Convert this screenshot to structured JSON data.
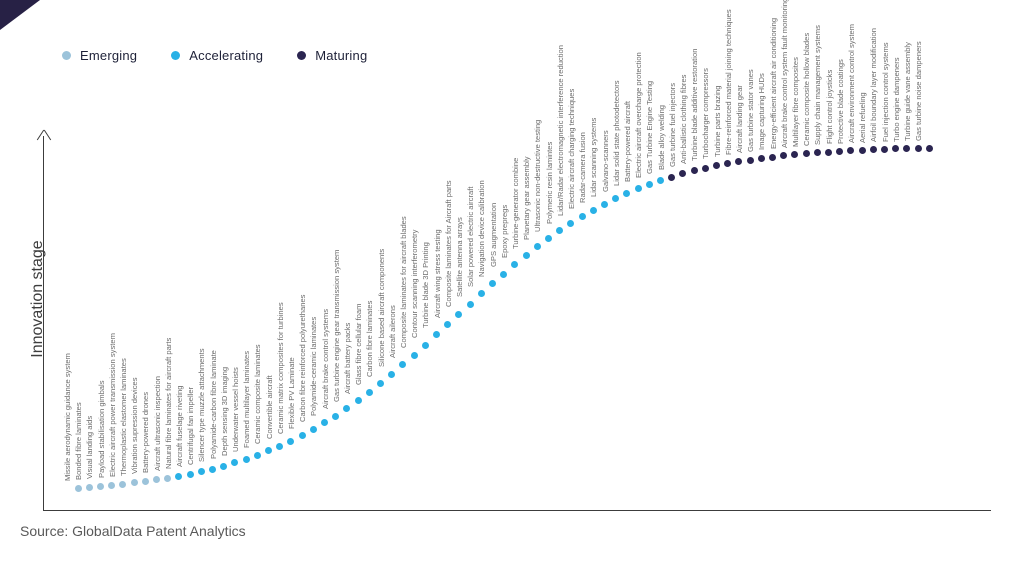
{
  "legend": {
    "items": [
      {
        "label": "Emerging",
        "color": "#9cc3da"
      },
      {
        "label": "Accelerating",
        "color": "#29b1e6"
      },
      {
        "label": "Maturing",
        "color": "#2b2551"
      }
    ]
  },
  "source": "Source: GlobalData Patent Analytics",
  "chart_data": {
    "type": "scatter",
    "title": "",
    "xlabel": "",
    "ylabel": "Innovation stage",
    "legend_position": "top-left",
    "grid": false,
    "axes_note": "no tick labels; single S-curve of ranked technologies, y = innovation stage ascending",
    "stage_colors": {
      "Emerging": "#9cc3da",
      "Accelerating": "#29b1e6",
      "Maturing": "#2b2551"
    },
    "points": [
      {
        "label": "Missile aerodynamic guidance system",
        "stage": "Emerging"
      },
      {
        "label": "Bonded fibre laminates",
        "stage": "Emerging"
      },
      {
        "label": "Visual landing aids",
        "stage": "Emerging"
      },
      {
        "label": "Payload stabilisation gimbals",
        "stage": "Emerging"
      },
      {
        "label": "Electric aircraft power transmission system",
        "stage": "Emerging"
      },
      {
        "label": "Thermoplastic elastomer laminates",
        "stage": "Emerging"
      },
      {
        "label": "Vibration supression devices",
        "stage": "Emerging"
      },
      {
        "label": "Battery-powered drones",
        "stage": "Emerging"
      },
      {
        "label": "Aircraft ultrasonic inspection",
        "stage": "Emerging"
      },
      {
        "label": "Natural fibre laminates for aircraft parts",
        "stage": "Accelerating"
      },
      {
        "label": "Aircraft fuselage riveting",
        "stage": "Accelerating"
      },
      {
        "label": "Centrifugal fan impeller",
        "stage": "Accelerating"
      },
      {
        "label": "Silencer type muzzle attachments",
        "stage": "Accelerating"
      },
      {
        "label": "Polyamide-carbon fibre laminate",
        "stage": "Accelerating"
      },
      {
        "label": "Depth sensing 3D imaging",
        "stage": "Accelerating"
      },
      {
        "label": "Underwater vessel hoists",
        "stage": "Accelerating"
      },
      {
        "label": "Foamed multilayer laminates",
        "stage": "Accelerating"
      },
      {
        "label": "Ceramic composite laminates",
        "stage": "Accelerating"
      },
      {
        "label": "Convertible aircraft",
        "stage": "Accelerating"
      },
      {
        "label": "Ceramic matrix composites for turbines",
        "stage": "Accelerating"
      },
      {
        "label": "Flexible PV Laminate",
        "stage": "Accelerating"
      },
      {
        "label": "Carbon fibre reinforced polyurethanes",
        "stage": "Accelerating"
      },
      {
        "label": "Polyamide-ceramic laminates",
        "stage": "Accelerating"
      },
      {
        "label": "Aircraft brake control systems",
        "stage": "Accelerating"
      },
      {
        "label": "Gas turbine engine gear transmission system",
        "stage": "Accelerating"
      },
      {
        "label": "Aircraft battery packs",
        "stage": "Accelerating"
      },
      {
        "label": "Glass fibre cellular foam",
        "stage": "Accelerating"
      },
      {
        "label": "Carbon fibre laminates",
        "stage": "Accelerating"
      },
      {
        "label": "Silicone based aircraft components",
        "stage": "Accelerating"
      },
      {
        "label": "Aircraft ailerons",
        "stage": "Accelerating"
      },
      {
        "label": "Composite laminates for aircraft blades",
        "stage": "Accelerating"
      },
      {
        "label": "Contour scanning interferometry",
        "stage": "Accelerating"
      },
      {
        "label": "Turbine blade 3D Printing",
        "stage": "Accelerating"
      },
      {
        "label": "Aircraft wing stress testing",
        "stage": "Accelerating"
      },
      {
        "label": "Composite laminates for Aircraft parts",
        "stage": "Accelerating"
      },
      {
        "label": "Satellite antenna arrays",
        "stage": "Accelerating"
      },
      {
        "label": "Solar powered electric aircraft",
        "stage": "Accelerating"
      },
      {
        "label": "Navigation device calibration",
        "stage": "Accelerating"
      },
      {
        "label": "GPS augmentation",
        "stage": "Accelerating"
      },
      {
        "label": "Epoxy prepregs",
        "stage": "Accelerating"
      },
      {
        "label": "Turbine-generator combine",
        "stage": "Accelerating"
      },
      {
        "label": "Planetary gear assembly",
        "stage": "Accelerating"
      },
      {
        "label": "Ultrasonic non-destructive testing",
        "stage": "Accelerating"
      },
      {
        "label": "Polymeric resin lamintes",
        "stage": "Accelerating"
      },
      {
        "label": "Lidar/Radar electromagnetic interference reduction",
        "stage": "Accelerating"
      },
      {
        "label": "Electric aircraft charging techniques",
        "stage": "Accelerating"
      },
      {
        "label": "Radar-camera fusion",
        "stage": "Accelerating"
      },
      {
        "label": "Lidar scanning systems",
        "stage": "Accelerating"
      },
      {
        "label": "Galvano-scanners",
        "stage": "Accelerating"
      },
      {
        "label": "Lidar solid state photodetectors",
        "stage": "Accelerating"
      },
      {
        "label": "Battery-powered aircraft",
        "stage": "Accelerating"
      },
      {
        "label": "Electric aircraft overcharge protection",
        "stage": "Accelerating"
      },
      {
        "label": "Gas Turbine Engine Testing",
        "stage": "Accelerating"
      },
      {
        "label": "Blade alloy welding",
        "stage": "Maturing"
      },
      {
        "label": "Gas turbine fuel injectors",
        "stage": "Maturing"
      },
      {
        "label": "Anti-ballistic clothing fibres",
        "stage": "Maturing"
      },
      {
        "label": "Turbine blade additive restoration",
        "stage": "Maturing"
      },
      {
        "label": "Turbocharger compressors",
        "stage": "Maturing"
      },
      {
        "label": "Turbine parts brazing",
        "stage": "Maturing"
      },
      {
        "label": "Fibre-reinforced material joining techniques",
        "stage": "Maturing"
      },
      {
        "label": "Aircraft landing gear",
        "stage": "Maturing"
      },
      {
        "label": "Gas turbine stator vanes",
        "stage": "Maturing"
      },
      {
        "label": "Image capturing HUDs",
        "stage": "Maturing"
      },
      {
        "label": "Energy-efficient aircraft air conditioning",
        "stage": "Maturing"
      },
      {
        "label": "Aircraft brake control system fault monitoring",
        "stage": "Maturing"
      },
      {
        "label": "Multilayer fibre composites",
        "stage": "Maturing"
      },
      {
        "label": "Ceramic composite hollow blades",
        "stage": "Maturing"
      },
      {
        "label": "Supply chain management systems",
        "stage": "Maturing"
      },
      {
        "label": "Flight control joysticks",
        "stage": "Maturing"
      },
      {
        "label": "Protective blade coatings",
        "stage": "Maturing"
      },
      {
        "label": "Aircraft environment control system",
        "stage": "Maturing"
      },
      {
        "label": "Aerial refueling",
        "stage": "Maturing"
      },
      {
        "label": "Airfoil boundary layer modification",
        "stage": "Maturing"
      },
      {
        "label": "Fuel injection control systems",
        "stage": "Maturing"
      },
      {
        "label": "Turbo engine dampeners",
        "stage": "Maturing"
      },
      {
        "label": "Turbine guide vane assembly",
        "stage": "Maturing"
      },
      {
        "label": "Gas turbine noise dampeners",
        "stage": "Maturing"
      }
    ]
  }
}
